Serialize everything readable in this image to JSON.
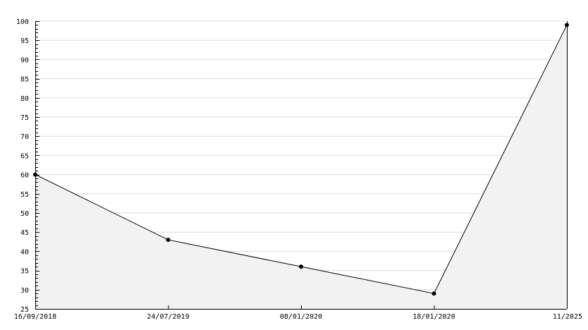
{
  "chart_data": {
    "type": "area",
    "categories": [
      "16/09/2018",
      "24/07/2019",
      "08/01/2020",
      "18/01/2020",
      "11/2025"
    ],
    "values": [
      60,
      43,
      36,
      29,
      99
    ],
    "ylim": [
      25,
      100
    ],
    "yticks": [
      25,
      30,
      35,
      40,
      45,
      50,
      55,
      60,
      65,
      70,
      75,
      80,
      85,
      90,
      95,
      100
    ],
    "grid": true,
    "colors": {
      "fill": "#f2f2f2",
      "line": "#000000",
      "grid": "#dddddd",
      "marker": "#000000"
    }
  }
}
